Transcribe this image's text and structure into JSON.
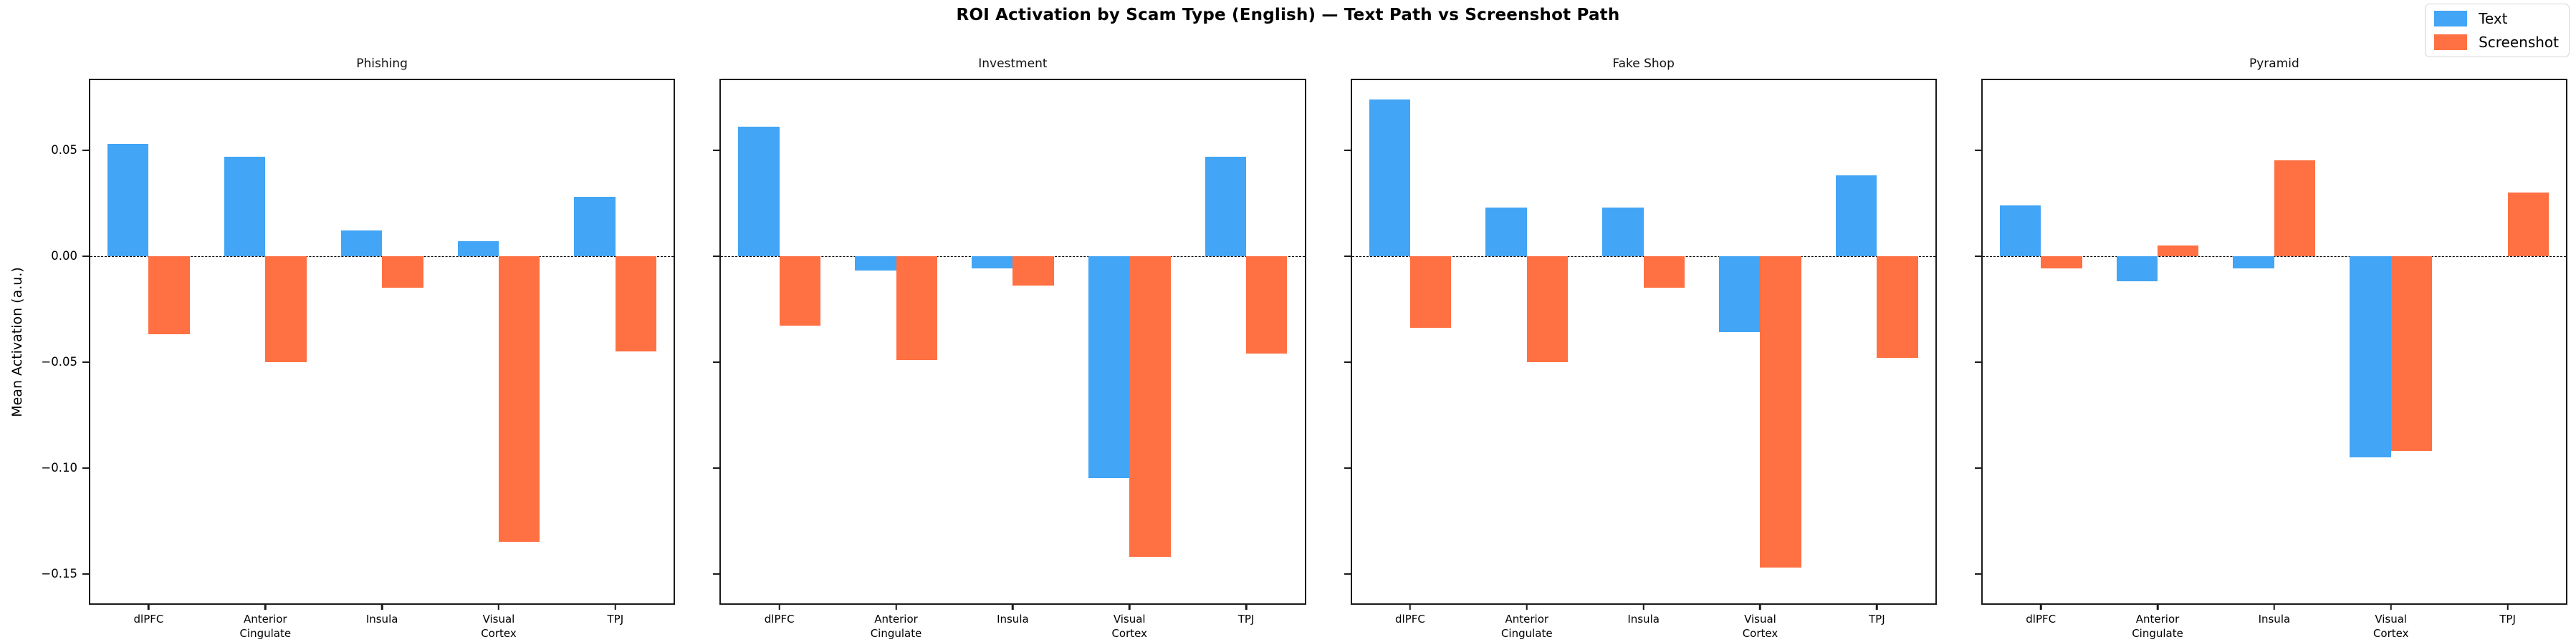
{
  "chart_data": {
    "type": "bar",
    "title": "ROI Activation by Scam Type (English) — Text Path vs Screenshot Path",
    "ylabel": "Mean Activation (a.u.)",
    "categories": [
      "dlPFC",
      "Anterior\nCingulate",
      "Insula",
      "Visual\nCortex",
      "TPJ"
    ],
    "yticks": [
      0.05,
      0.0,
      -0.05,
      -0.1,
      -0.15
    ],
    "ylim": [
      -0.164,
      0.083
    ],
    "zero_line_dashed": true,
    "grid": false,
    "legend_position": "upper right of figure, outside axes",
    "shared_y_axis": true,
    "panels": [
      {
        "title": "Phishing",
        "series": [
          {
            "name": "Text",
            "values": [
              0.053,
              0.047,
              0.012,
              0.007,
              0.028
            ]
          },
          {
            "name": "Screenshot",
            "values": [
              -0.037,
              -0.05,
              -0.015,
              -0.135,
              -0.045
            ]
          }
        ]
      },
      {
        "title": "Investment",
        "series": [
          {
            "name": "Text",
            "values": [
              0.061,
              -0.007,
              -0.006,
              -0.105,
              0.047
            ]
          },
          {
            "name": "Screenshot",
            "values": [
              -0.033,
              -0.049,
              -0.014,
              -0.142,
              -0.046
            ]
          }
        ]
      },
      {
        "title": "Fake Shop",
        "series": [
          {
            "name": "Text",
            "values": [
              0.074,
              0.023,
              0.023,
              -0.036,
              0.038
            ]
          },
          {
            "name": "Screenshot",
            "values": [
              -0.034,
              -0.05,
              -0.015,
              -0.147,
              -0.048
            ]
          }
        ]
      },
      {
        "title": "Pyramid",
        "series": [
          {
            "name": "Text",
            "values": [
              0.024,
              -0.012,
              -0.006,
              -0.095,
              0.0
            ]
          },
          {
            "name": "Screenshot",
            "values": [
              -0.006,
              0.005,
              0.045,
              -0.092,
              0.03
            ]
          }
        ]
      }
    ],
    "series_colors": {
      "Text": "#42A5F5",
      "Screenshot": "#FF7043"
    }
  },
  "legend": {
    "items": [
      {
        "label": "Text",
        "color": "#42A5F5"
      },
      {
        "label": "Screenshot",
        "color": "#FF7043"
      }
    ]
  }
}
